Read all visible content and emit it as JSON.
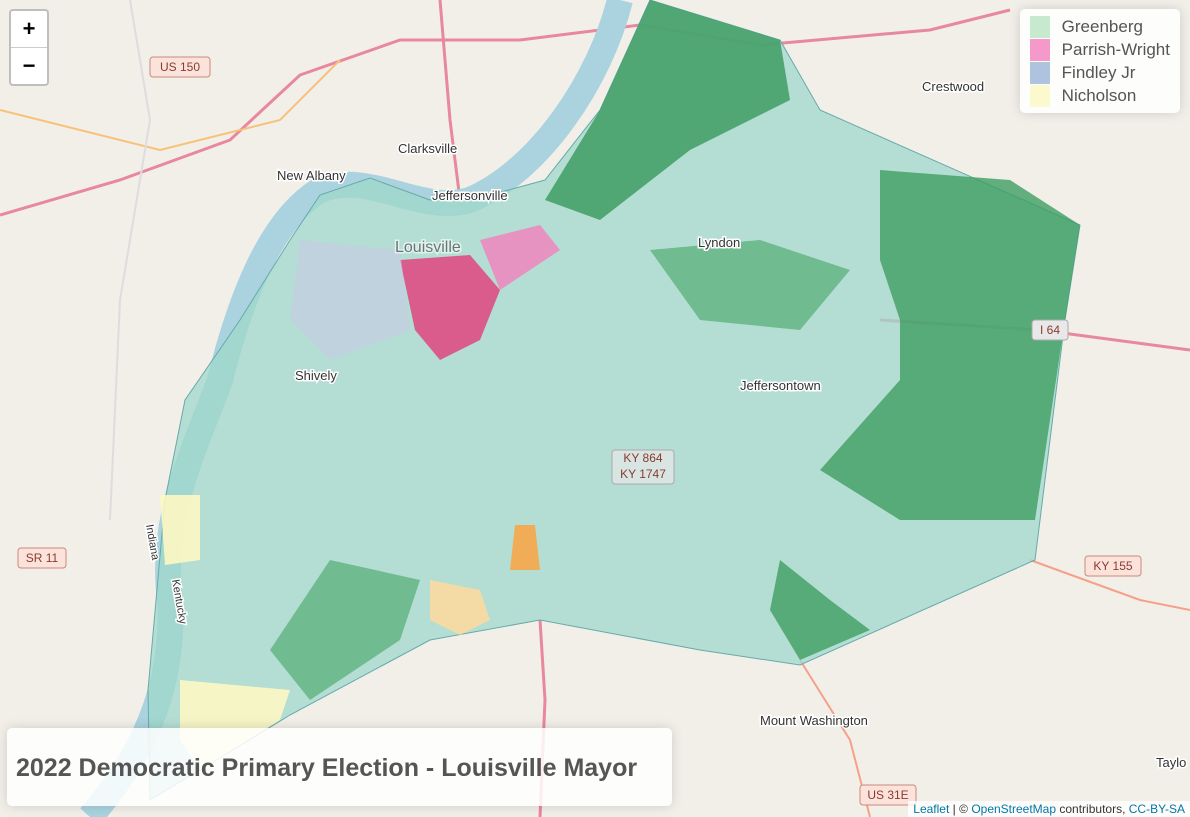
{
  "map": {
    "zoom_in": "+",
    "zoom_out": "−",
    "legend": [
      {
        "name": "Greenberg",
        "color": "#b9e3c1"
      },
      {
        "name": "Parrish-Wright",
        "color": "#f27fbd"
      },
      {
        "name": "Findley Jr",
        "color": "#9ab4d6"
      },
      {
        "name": "Nicholson",
        "color": "#fdf7c3"
      }
    ],
    "title": "2022 Democratic Primary Election - Louisville Mayor",
    "places": [
      "Clarksville",
      "New Albany",
      "Jeffersonville",
      "Louisville",
      "Shively",
      "Lyndon",
      "Jeffersontown",
      "Crestwood",
      "Mount Washington",
      "Taylo",
      "Indiana",
      "Kentucky"
    ],
    "shields": [
      "US 150",
      "SR 11",
      "KY 155",
      "US 31E",
      "I 64",
      "KY 864",
      "KY 1747"
    ],
    "attribution": {
      "leaflet": "Leaflet",
      "separator": "|",
      "copyright": "©",
      "osm": "OpenStreetMap",
      "contributors": "contributors,",
      "license": "CC-BY-SA"
    }
  }
}
